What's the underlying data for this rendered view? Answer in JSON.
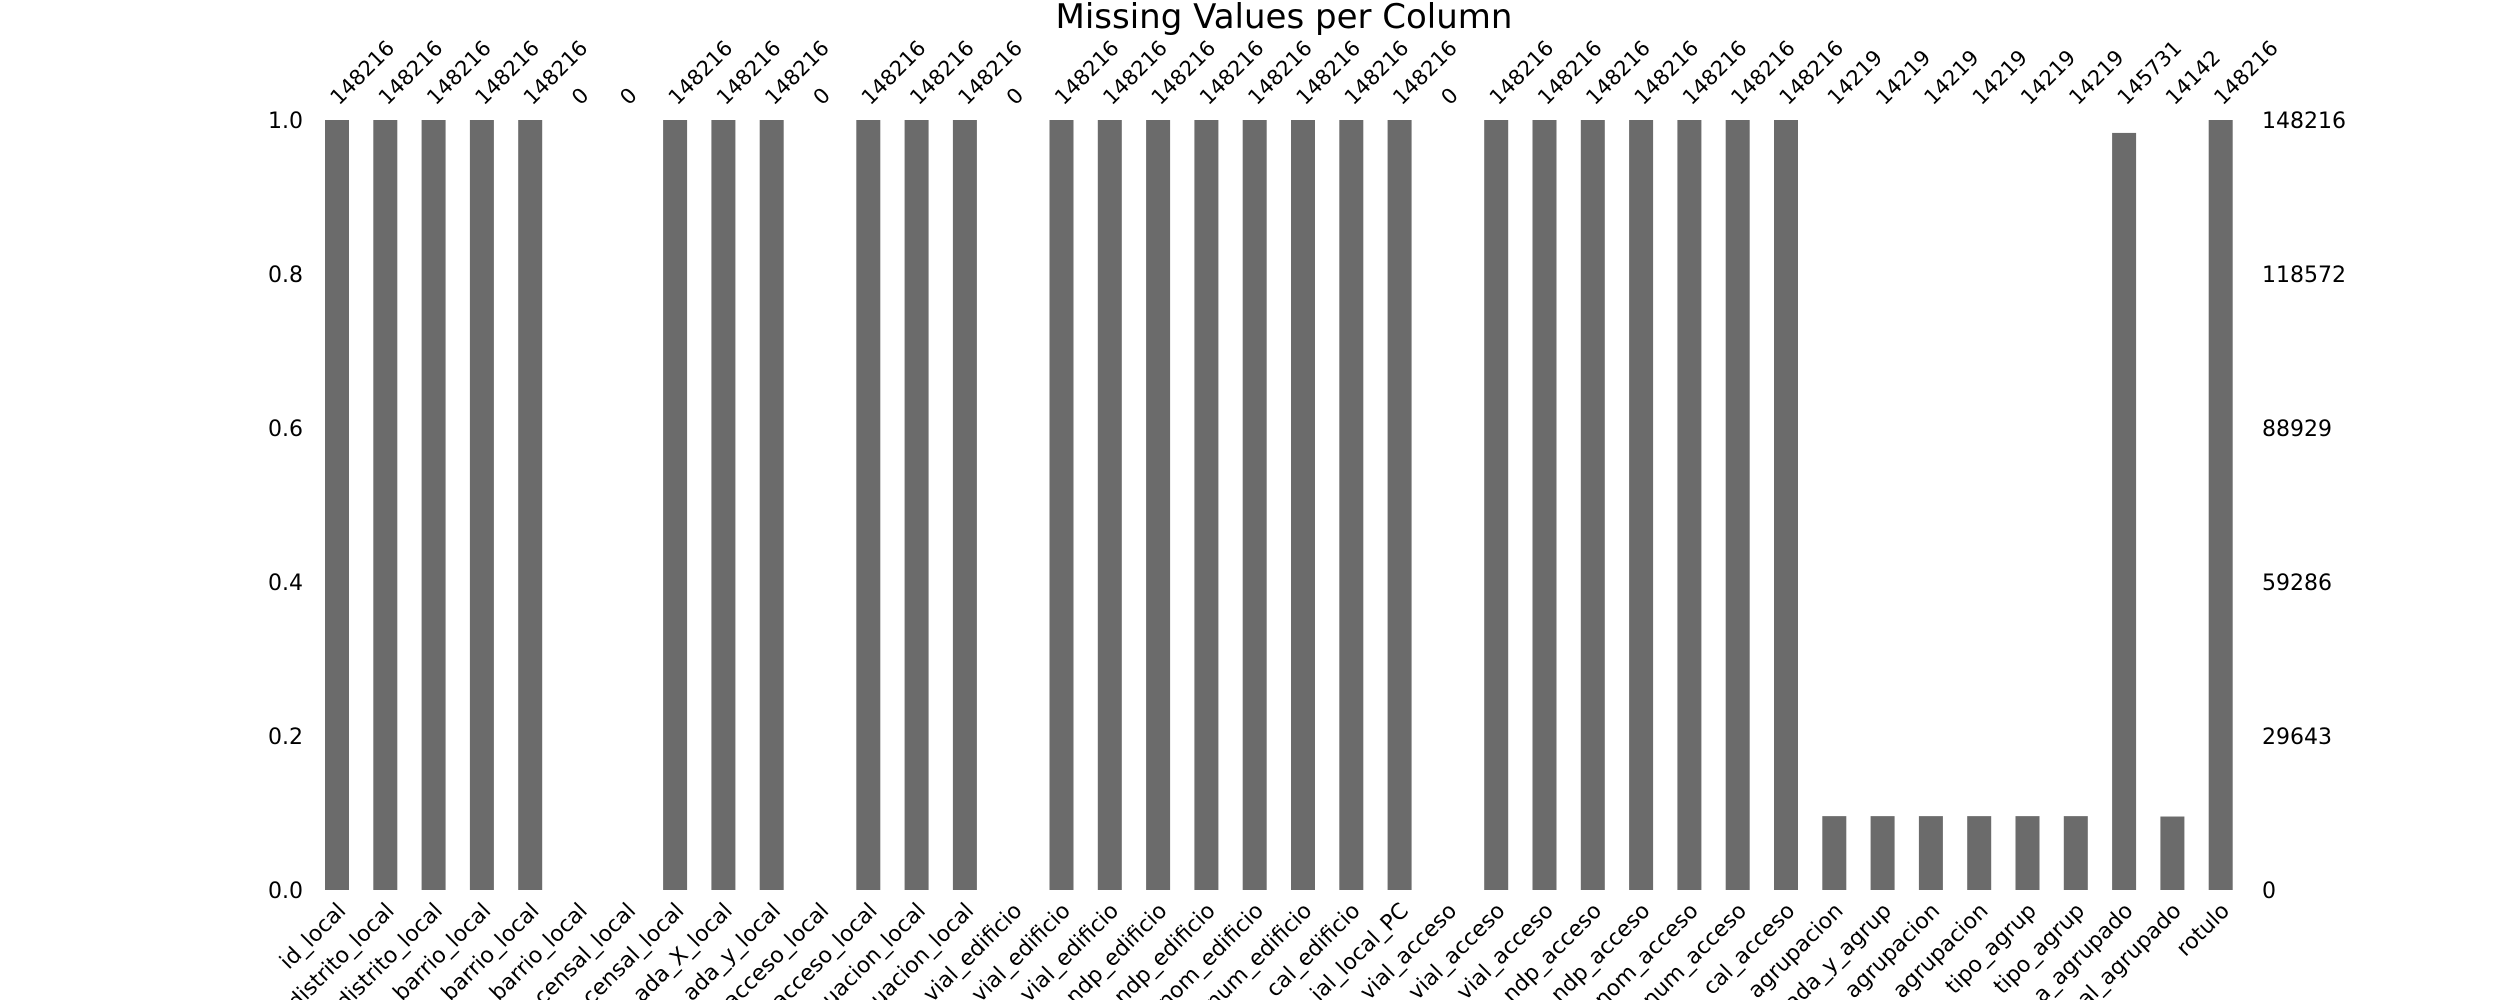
{
  "chart_data": {
    "type": "bar",
    "title": "Missing Values per Column",
    "total_rows": 148216,
    "bar_color": "#6b6b6b",
    "ylim": [
      0,
      1.0
    ],
    "left_ticks": [
      "0.0",
      "0.2",
      "0.4",
      "0.6",
      "0.8",
      "1.0"
    ],
    "right_ticks": [
      "0",
      "29643",
      "59286",
      "88929",
      "118572",
      "148216"
    ],
    "categories": [
      "id_local",
      "distrito_local",
      "distrito_local",
      "barrio_local",
      "barrio_local",
      "barrio_local",
      "censal_local",
      "censal_local",
      "ada_X_local",
      "ada_y_local",
      "acceso_local",
      "acceso_local",
      "uacion_local",
      "uacion_local",
      "vial_edificio",
      "vial_edificio",
      "vial_edificio",
      "ndp_edificio",
      "ndp_edificio",
      "nom_edificio",
      "num_edificio",
      "cal_edificio",
      "ial_local_PC",
      "vial_acceso",
      "vial_acceso",
      "vial_acceso",
      "ndp_acceso",
      "ndp_acceso",
      "nom_acceso",
      "num_acceso",
      "cal_acceso",
      "agrupacion",
      "ada_y_agrup",
      "agrupacion",
      "agrupacion",
      "tipo_agrup",
      "tipo_agrup",
      "a_agrupado",
      "al_agrupado",
      "rotulo"
    ],
    "counts": [
      148216,
      148216,
      148216,
      148216,
      148216,
      0,
      0,
      148216,
      148216,
      148216,
      0,
      148216,
      148216,
      148216,
      0,
      148216,
      148216,
      148216,
      148216,
      148216,
      148216,
      148216,
      148216,
      0,
      148216,
      148216,
      148216,
      148216,
      148216,
      148216,
      148216,
      14219,
      14219,
      14219,
      14219,
      14219,
      14219,
      145731,
      14142,
      148216
    ]
  }
}
